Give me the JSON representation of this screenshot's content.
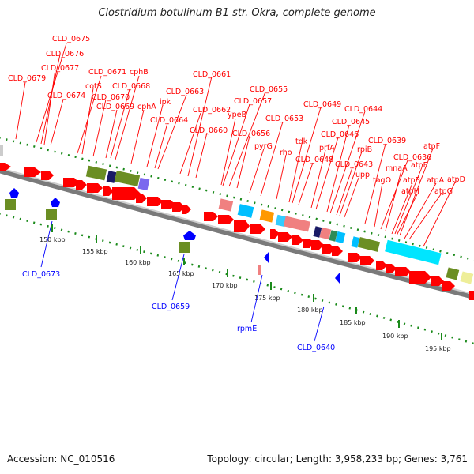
{
  "title": "Clostridium botulinum B1 str. Okra, complete genome",
  "footer": {
    "accession": "Accession: NC_010516",
    "summary": "Topology: circular; Length: 3,958,233 bp; Genes: 3,761"
  },
  "colors": {
    "cds_forward": "#ff0000",
    "label_forward": "#ff0000",
    "label_reverse": "#0000ff",
    "tick": "#1a8a1a",
    "backbone": "#808080"
  },
  "scale_ticks": [
    "150 kbp",
    "155 kbp",
    "160 kbp",
    "165 kbp",
    "170 kbp",
    "175 kbp",
    "180 kbp",
    "185 kbp",
    "190 kbp",
    "195 kbp"
  ],
  "forward_labels": [
    "CLD_0675",
    "CLD_0676",
    "CLD_0677",
    "CLD_0679",
    "CLD_0674",
    "CLD_0671",
    "cotS",
    "CLD_0670",
    "cphB",
    "CLD_0668",
    "CLD_0669",
    "cphA",
    "ipk",
    "CLD_0663",
    "CLD_0664",
    "CLD_0662",
    "CLD_0661",
    "CLD_0660",
    "CLD_0655",
    "CLD_0657",
    "ypeB",
    "CLD_0656",
    "pyrG",
    "CLD_0653",
    "rho",
    "CLD_0649",
    "tdk",
    "CLD_0648",
    "CLD_0646",
    "prfA",
    "CLD_0644",
    "CLD_0645",
    "rpiB",
    "CLD_0643",
    "upp",
    "CLD_0639",
    "tagO",
    "CLD_0636",
    "mnaA",
    "atpF",
    "atpE",
    "atpB",
    "atpH",
    "atpA",
    "atpG",
    "atpD"
  ],
  "reverse_labels": [
    "CLD_0673",
    "CLD_0659",
    "rpmE",
    "CLD_0640"
  ]
}
